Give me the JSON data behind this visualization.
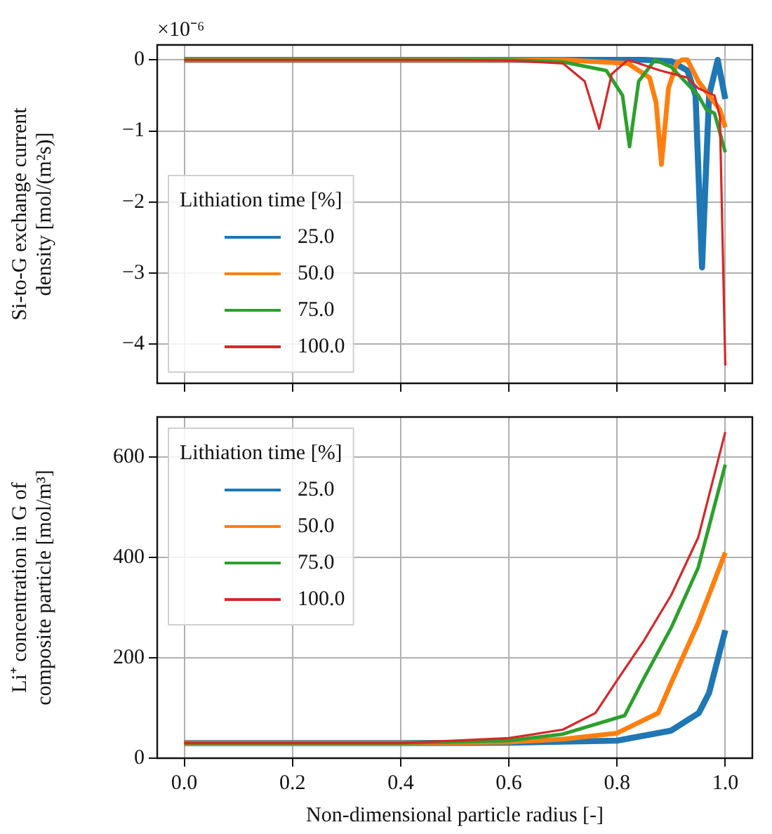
{
  "chart_data": [
    {
      "type": "line",
      "ylabel": "Si-to-G exchange current density [mol/(m²s)]",
      "annotations": [
        "×10⁻⁶"
      ],
      "legend_title": "Lithiation time [%]",
      "legend": "bottom left",
      "grid": true,
      "tick_labels": "y",
      "line_style": "solid",
      "xlim": [
        -0.05,
        1.05
      ],
      "xticks": [
        {
          "value": 0,
          "label": null
        },
        {
          "value": 0.2,
          "label": null
        },
        {
          "value": 0.4,
          "label": null
        },
        {
          "value": 0.6,
          "label": null
        },
        {
          "value": 0.8,
          "label": null
        },
        {
          "value": 1,
          "label": null
        }
      ],
      "ylim": [
        -4.55,
        0.21
      ],
      "yticks": [
        0,
        -1,
        -2,
        -3,
        -4
      ],
      "series": [
        {
          "name": "25.0",
          "color": "#1f77b4",
          "x": [
            0,
            0.5,
            0.85,
            0.9,
            0.93,
            0.945,
            0.957,
            0.97,
            0.986,
            1.0
          ],
          "values": [
            0,
            0,
            0,
            -0.02,
            -0.15,
            -0.5,
            -2.92,
            -0.5,
            0,
            -0.55
          ]
        },
        {
          "name": "50.0",
          "color": "#ff7f0e",
          "x": [
            0,
            0.5,
            0.7,
            0.82,
            0.86,
            0.872,
            0.882,
            0.895,
            0.91,
            0.92,
            0.93,
            0.95,
            0.97,
            0.99,
            1.0
          ],
          "values": [
            0,
            0,
            0,
            -0.05,
            -0.25,
            -0.6,
            -1.47,
            -0.4,
            -0.05,
            0,
            0,
            -0.3,
            -0.5,
            -0.7,
            -0.95
          ]
        },
        {
          "name": "75.0",
          "color": "#2ca02c",
          "x": [
            0,
            0.5,
            0.6,
            0.7,
            0.78,
            0.81,
            0.823,
            0.84,
            0.87,
            0.9,
            0.95,
            0.965,
            0.98,
            1.0
          ],
          "values": [
            0,
            0,
            0,
            -0.03,
            -0.15,
            -0.5,
            -1.22,
            -0.3,
            0,
            -0.1,
            -0.5,
            -0.7,
            -0.75,
            -1.3
          ]
        },
        {
          "name": "100.0",
          "color": "#d62728",
          "x": [
            0,
            0.5,
            0.6,
            0.7,
            0.74,
            0.767,
            0.79,
            0.82,
            0.88,
            0.93,
            0.95,
            0.98,
            0.99,
            1.0
          ],
          "values": [
            0,
            0,
            -0.01,
            -0.05,
            -0.3,
            -0.97,
            -0.2,
            0,
            -0.15,
            -0.25,
            -0.4,
            -0.5,
            -0.8,
            -4.3
          ]
        }
      ]
    },
    {
      "type": "line",
      "xlabel": "Non-dimensional particle radius [-]",
      "ylabel": "Li⁺ concentration in G of composite particle [mol/m³]",
      "legend_title": "Lithiation time [%]",
      "legend": "top left",
      "grid": true,
      "line_style": "solid",
      "xlim": [
        -0.05,
        1.05
      ],
      "xticks": [
        {
          "value": 0,
          "label": "0.0"
        },
        {
          "value": 0.2,
          "label": "0.2"
        },
        {
          "value": 0.4,
          "label": "0.4"
        },
        {
          "value": 0.6,
          "label": "0.6"
        },
        {
          "value": 0.8,
          "label": "0.8"
        },
        {
          "value": 1,
          "label": "1.0"
        }
      ],
      "ylim": [
        0,
        680
      ],
      "yticks": [
        0,
        200,
        400,
        600
      ],
      "series": [
        {
          "name": "25.0",
          "color": "#1f77b4",
          "x": [
            0,
            0.4,
            0.6,
            0.8,
            0.9,
            0.951,
            0.97,
            1.0
          ],
          "values": [
            30,
            30,
            31,
            35,
            55,
            90,
            130,
            255
          ]
        },
        {
          "name": "50.0",
          "color": "#ff7f0e",
          "x": [
            0,
            0.4,
            0.6,
            0.7,
            0.8,
            0.876,
            0.9,
            0.95,
            1.0
          ],
          "values": [
            30,
            30,
            32,
            38,
            50,
            90,
            150,
            270,
            410
          ]
        },
        {
          "name": "75.0",
          "color": "#2ca02c",
          "x": [
            0,
            0.4,
            0.6,
            0.7,
            0.814,
            0.85,
            0.9,
            0.95,
            1.0
          ],
          "values": [
            30,
            30,
            35,
            48,
            85,
            160,
            260,
            380,
            585
          ]
        },
        {
          "name": "100.0",
          "color": "#d62728",
          "x": [
            0,
            0.4,
            0.6,
            0.7,
            0.76,
            0.8,
            0.85,
            0.9,
            0.95,
            1.0
          ],
          "values": [
            30,
            30,
            40,
            57,
            90,
            155,
            235,
            325,
            440,
            650
          ]
        }
      ]
    }
  ]
}
